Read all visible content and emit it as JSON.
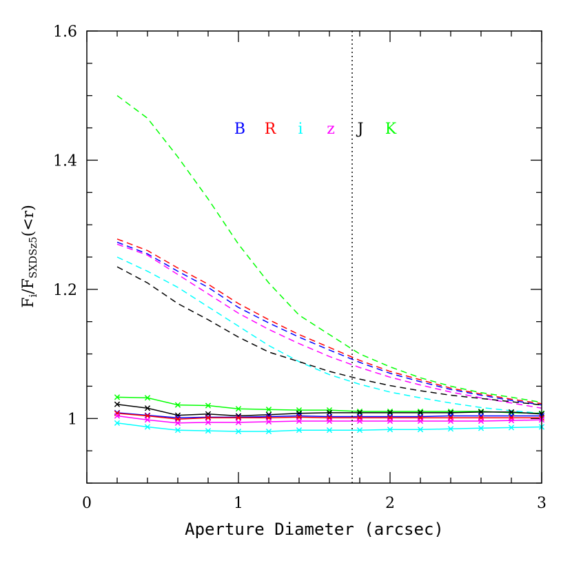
{
  "chart_data": {
    "type": "line",
    "xlabel": "Aperture Diameter (arcsec)",
    "ylabel": {
      "main": "F",
      "sub1": "i",
      "sep": "/F",
      "sub2": "SXDSz5",
      "tail": "(<r)"
    },
    "xlim": [
      0,
      3
    ],
    "ylim": [
      0.9,
      1.6
    ],
    "x_ticks": [
      {
        "value": 0,
        "label": "0"
      },
      {
        "value": 1,
        "label": "1"
      },
      {
        "value": 2,
        "label": "2"
      },
      {
        "value": 3,
        "label": "3"
      }
    ],
    "y_ticks": [
      {
        "value": 1.0,
        "label": "1"
      },
      {
        "value": 1.2,
        "label": "1.2"
      },
      {
        "value": 1.4,
        "label": "1.4"
      },
      {
        "value": 1.6,
        "label": "1.6"
      }
    ],
    "x_minor_step": 0.2,
    "y_minor_step": 0.05,
    "vline": {
      "x": 1.75,
      "style": "dotted"
    },
    "legend": [
      {
        "label": "B",
        "color": "#0000ff"
      },
      {
        "label": "R",
        "color": "#ff0000"
      },
      {
        "label": "i",
        "color": "#00ffff"
      },
      {
        "label": "z",
        "color": "#ff00ff"
      },
      {
        "label": "J",
        "color": "#000000"
      },
      {
        "label": "K",
        "color": "#00ff00"
      }
    ],
    "x": [
      0.2,
      0.4,
      0.6,
      0.8,
      1.0,
      1.2,
      1.4,
      1.6,
      1.8,
      2.0,
      2.2,
      2.4,
      2.6,
      2.8,
      3.0
    ],
    "series": [
      {
        "band": "K",
        "style": "dashed",
        "color": "#00ff00",
        "values": [
          1.5,
          1.465,
          1.405,
          1.34,
          1.27,
          1.21,
          1.16,
          1.13,
          1.1,
          1.08,
          1.063,
          1.05,
          1.04,
          1.033,
          1.025
        ]
      },
      {
        "band": "R",
        "style": "dashed",
        "color": "#ff0000",
        "values": [
          1.278,
          1.26,
          1.233,
          1.208,
          1.178,
          1.153,
          1.13,
          1.11,
          1.09,
          1.073,
          1.06,
          1.047,
          1.038,
          1.03,
          1.023
        ]
      },
      {
        "band": "B",
        "style": "dashed",
        "color": "#0000ff",
        "values": [
          1.273,
          1.255,
          1.228,
          1.203,
          1.172,
          1.148,
          1.126,
          1.106,
          1.087,
          1.07,
          1.057,
          1.045,
          1.036,
          1.028,
          1.021
        ]
      },
      {
        "band": "z",
        "style": "dashed",
        "color": "#ff00ff",
        "values": [
          1.27,
          1.253,
          1.223,
          1.193,
          1.163,
          1.138,
          1.116,
          1.096,
          1.079,
          1.064,
          1.052,
          1.041,
          1.032,
          1.024,
          1.016
        ]
      },
      {
        "band": "i",
        "style": "dashed",
        "color": "#00ffff",
        "values": [
          1.25,
          1.228,
          1.203,
          1.173,
          1.143,
          1.113,
          1.088,
          1.068,
          1.053,
          1.041,
          1.032,
          1.024,
          1.017,
          1.012,
          1.008
        ]
      },
      {
        "band": "J",
        "style": "dashed",
        "color": "#000000",
        "values": [
          1.235,
          1.21,
          1.178,
          1.153,
          1.126,
          1.103,
          1.088,
          1.073,
          1.061,
          1.051,
          1.043,
          1.036,
          1.031,
          1.026,
          1.021
        ]
      },
      {
        "band": "K",
        "style": "solid",
        "color": "#00ff00",
        "values": [
          1.033,
          1.032,
          1.021,
          1.02,
          1.015,
          1.014,
          1.013,
          1.013,
          1.011,
          1.011,
          1.011,
          1.011,
          1.011,
          1.009,
          1.008
        ]
      },
      {
        "band": "J",
        "style": "solid",
        "color": "#000000",
        "values": [
          1.022,
          1.016,
          1.005,
          1.007,
          1.004,
          1.006,
          1.008,
          1.009,
          1.009,
          1.009,
          1.009,
          1.009,
          1.01,
          1.01,
          1.007
        ]
      },
      {
        "band": "B",
        "style": "solid",
        "color": "#0000ff",
        "values": [
          1.009,
          1.005,
          1.001,
          1.002,
          1.002,
          1.003,
          1.004,
          1.003,
          1.003,
          1.003,
          1.003,
          1.004,
          1.004,
          1.004,
          1.004
        ]
      },
      {
        "band": "R",
        "style": "solid",
        "color": "#ff0000",
        "values": [
          1.008,
          1.004,
          0.999,
          1.001,
          1.001,
          1.001,
          1.002,
          1.001,
          1.001,
          1.001,
          1.001,
          1.001,
          1.001,
          1.001,
          1.001
        ]
      },
      {
        "band": "z",
        "style": "solid",
        "color": "#ff00ff",
        "values": [
          1.004,
          0.998,
          0.993,
          0.994,
          0.994,
          0.995,
          0.996,
          0.996,
          0.996,
          0.996,
          0.996,
          0.996,
          0.996,
          0.997,
          0.998
        ]
      },
      {
        "band": "i",
        "style": "solid",
        "color": "#00ffff",
        "values": [
          0.993,
          0.987,
          0.982,
          0.981,
          0.98,
          0.98,
          0.982,
          0.982,
          0.982,
          0.983,
          0.983,
          0.984,
          0.985,
          0.986,
          0.987
        ]
      }
    ]
  }
}
